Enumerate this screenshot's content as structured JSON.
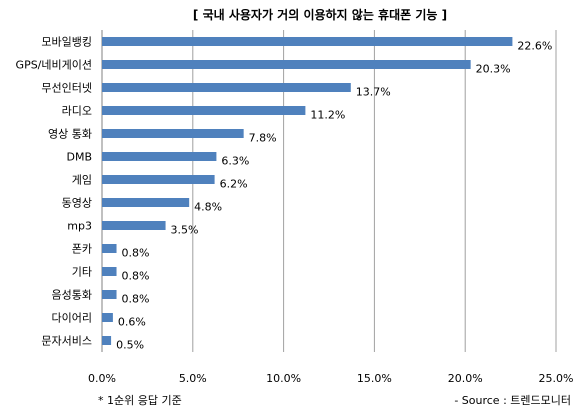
{
  "chart_data": {
    "type": "bar",
    "orientation": "horizontal",
    "title": "[ 국내 사용자가 거의 이용하지 않는 휴대폰 기능 ]",
    "categories": [
      "모바일뱅킹",
      "GPS/네비게이션",
      "무선인터넷",
      "라디오",
      "영상 통화",
      "DMB",
      "게임",
      "동영상",
      "mp3",
      "폰카",
      "기타",
      "음성통화",
      "다이어리",
      "문자서비스"
    ],
    "values": [
      22.6,
      20.3,
      13.7,
      11.2,
      7.8,
      6.3,
      6.2,
      4.8,
      3.5,
      0.8,
      0.8,
      0.8,
      0.6,
      0.5
    ],
    "value_labels": [
      "22.6%",
      "20.3%",
      "13.7%",
      "11.2%",
      "7.8%",
      "6.3%",
      "6.2%",
      "4.8%",
      "3.5%",
      "0.8%",
      "0.8%",
      "0.8%",
      "0.6%",
      "0.5%"
    ],
    "xlim": [
      0,
      25
    ],
    "x_ticks": [
      0,
      5,
      10,
      15,
      20,
      25
    ],
    "x_tick_labels": [
      "0.0%",
      "5.0%",
      "10.0%",
      "15.0%",
      "20.0%",
      "25.0%"
    ],
    "grid": "vertical",
    "bar_color": "#4f81bd",
    "grid_color": "#a0a0a0"
  },
  "notes": {
    "footnote": "* 1순위 응답 기준",
    "source": "- Source : 트렌드모니터"
  }
}
